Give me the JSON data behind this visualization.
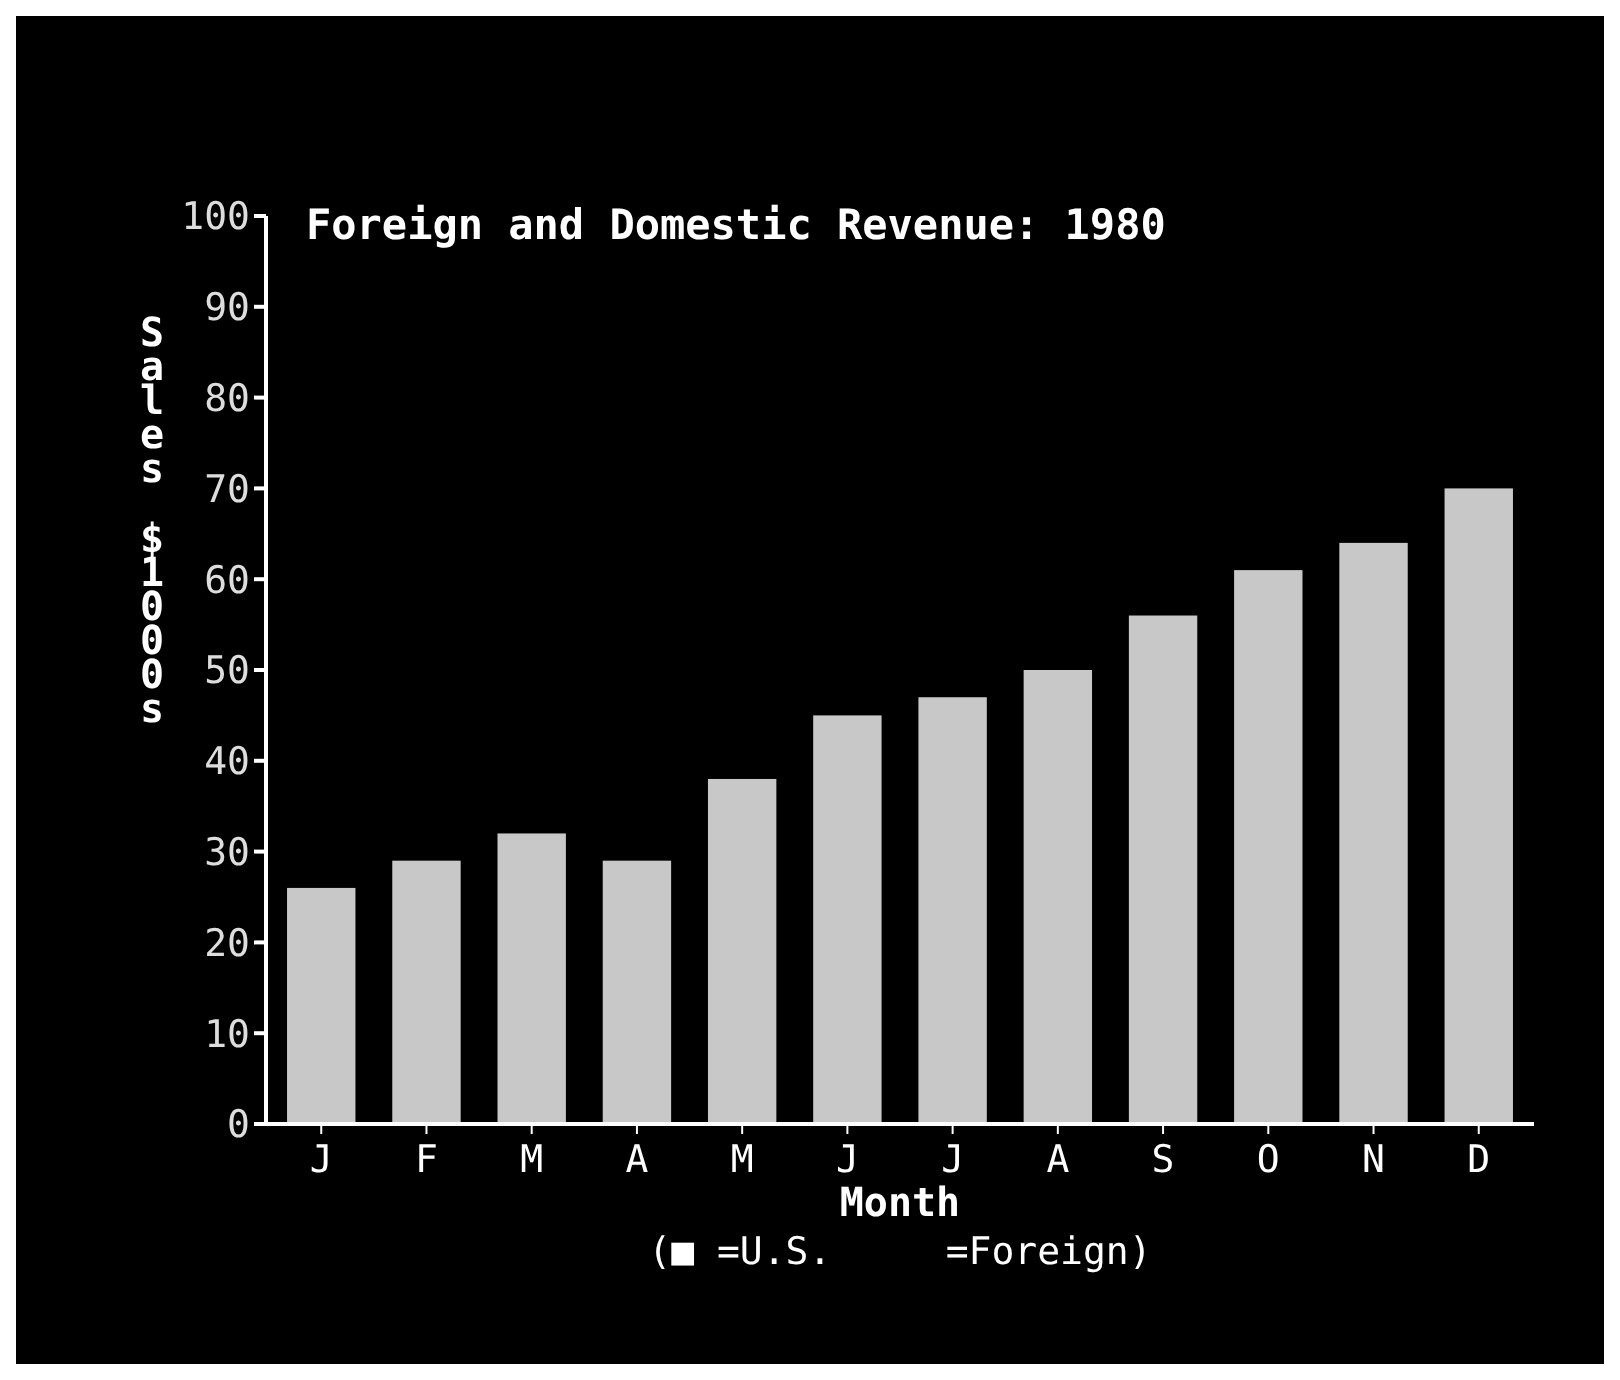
{
  "chart_data": {
    "type": "bar",
    "title": "Foreign and Domestic Revenue: 1980",
    "xlabel": "Month",
    "ylabel": "Sales $1000s",
    "categories": [
      "J",
      "F",
      "M",
      "A",
      "M",
      "J",
      "J",
      "A",
      "S",
      "O",
      "N",
      "D"
    ],
    "values": [
      26,
      29,
      32,
      29,
      38,
      45,
      47,
      50,
      56,
      61,
      64,
      70
    ],
    "color": "#c8c8c8",
    "annotations": [
      "(■ =U.S.     =Foreign)"
    ],
    "ylim": [
      0,
      100
    ],
    "yticks": [
      0,
      10,
      20,
      30,
      40,
      50,
      60,
      70,
      80,
      90,
      100
    ],
    "grid": false
  }
}
